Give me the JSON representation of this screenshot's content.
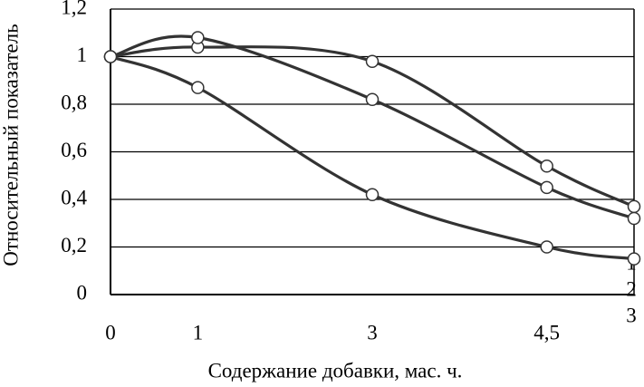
{
  "chart_data": {
    "type": "line",
    "x_label": "Содержание добавки, мас. ч.",
    "y_label": "Относительный показатель",
    "categories": [
      "0",
      "1",
      "3",
      "4,5",
      null
    ],
    "series": [
      {
        "name": "1",
        "color": "#333333",
        "values": [
          1,
          1.04,
          0.98,
          0.54,
          0.37
        ]
      },
      {
        "name": "2",
        "color": "#333333",
        "values": [
          1,
          1.08,
          0.82,
          0.45,
          0.32
        ]
      },
      {
        "name": "3",
        "color": "#333333",
        "values": [
          1,
          0.87,
          0.42,
          0.2,
          0.15
        ]
      }
    ],
    "ylim": [
      0,
      1.2
    ],
    "yticks": [
      0,
      {
        "value": 0.2,
        "label": "0,2"
      },
      {
        "value": 0.4,
        "label": "0,4"
      },
      {
        "value": 0.6,
        "label": "0,6"
      },
      {
        "value": 0.8,
        "label": "0,8"
      },
      1,
      {
        "value": 1.2,
        "label": "1,2"
      }
    ],
    "grid": true
  }
}
